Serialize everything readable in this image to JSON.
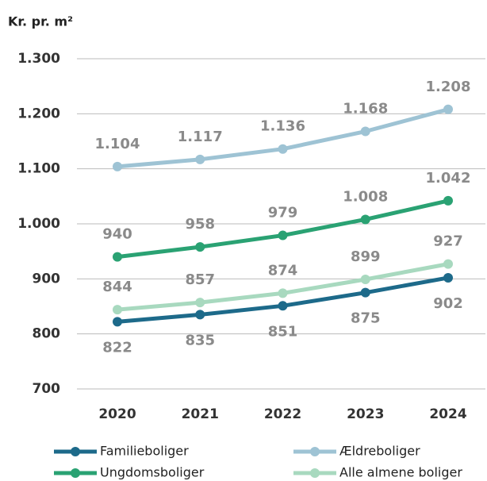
{
  "chart_data": {
    "type": "line",
    "y_axis_label": "Kr. pr. m²",
    "categories": [
      "2020",
      "2021",
      "2022",
      "2023",
      "2024"
    ],
    "series": [
      {
        "name": "Familieboliger",
        "color": "#1d6a8a",
        "values": [
          822,
          835,
          851,
          875,
          902
        ]
      },
      {
        "name": "Ældreboliger",
        "color": "#9ec3d4",
        "values": [
          1104,
          1117,
          1136,
          1168,
          1208
        ],
        "value_labels": [
          "1.104",
          "1.117",
          "1.136",
          "1.168",
          "1.208"
        ]
      },
      {
        "name": "Ungdomsboliger",
        "color": "#2aa273",
        "values": [
          940,
          958,
          979,
          1008,
          1042
        ],
        "value_labels": [
          "940",
          "958",
          "979",
          "1.008",
          "1.042"
        ]
      },
      {
        "name": "Alle almene boliger",
        "color": "#a8d9bf",
        "values": [
          844,
          857,
          874,
          899,
          927
        ]
      }
    ],
    "ylim": [
      700,
      1300
    ],
    "yticks": [
      {
        "value": 1300,
        "label": "1.300"
      },
      {
        "value": 1200,
        "label": "1.200"
      },
      {
        "value": 1100,
        "label": "1.100"
      },
      {
        "value": 1000,
        "label": "1.000"
      },
      900,
      800,
      700
    ],
    "grid": true
  }
}
